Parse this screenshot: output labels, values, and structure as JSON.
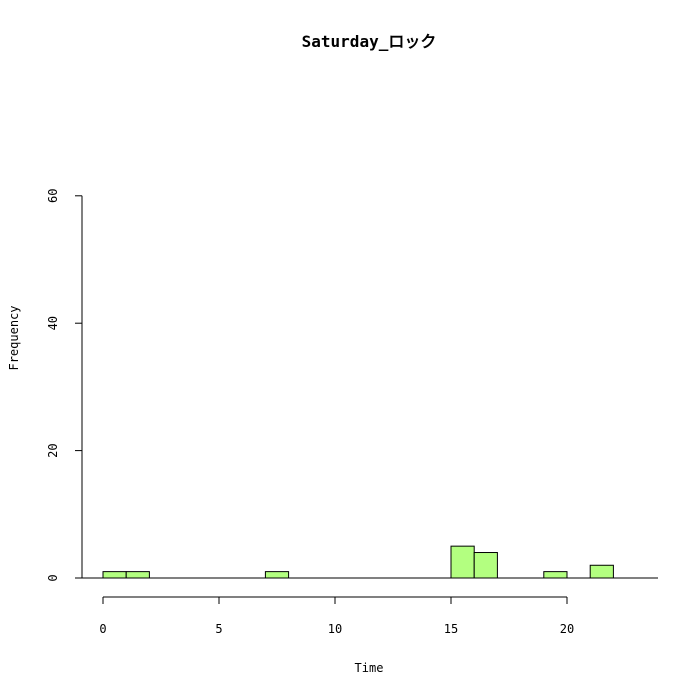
{
  "chart_data": {
    "type": "bar",
    "title": "Saturday_ロック",
    "xlabel": "Time",
    "ylabel": "Frequency",
    "xlim": [
      0,
      24
    ],
    "ylim": [
      0,
      60
    ],
    "x_ticks": [
      0,
      5,
      10,
      15,
      20
    ],
    "y_ticks": [
      0,
      20,
      40,
      60
    ],
    "bin_width": 1,
    "bins": [
      {
        "start": 0,
        "end": 1,
        "count": 1
      },
      {
        "start": 1,
        "end": 2,
        "count": 1
      },
      {
        "start": 2,
        "end": 3,
        "count": 0
      },
      {
        "start": 3,
        "end": 4,
        "count": 0
      },
      {
        "start": 4,
        "end": 5,
        "count": 0
      },
      {
        "start": 5,
        "end": 6,
        "count": 0
      },
      {
        "start": 6,
        "end": 7,
        "count": 0
      },
      {
        "start": 7,
        "end": 8,
        "count": 1
      },
      {
        "start": 8,
        "end": 9,
        "count": 0
      },
      {
        "start": 9,
        "end": 10,
        "count": 0
      },
      {
        "start": 10,
        "end": 11,
        "count": 0
      },
      {
        "start": 11,
        "end": 12,
        "count": 0
      },
      {
        "start": 12,
        "end": 13,
        "count": 0
      },
      {
        "start": 13,
        "end": 14,
        "count": 0
      },
      {
        "start": 14,
        "end": 15,
        "count": 0
      },
      {
        "start": 15,
        "end": 16,
        "count": 5
      },
      {
        "start": 16,
        "end": 17,
        "count": 4
      },
      {
        "start": 17,
        "end": 18,
        "count": 0
      },
      {
        "start": 18,
        "end": 19,
        "count": 0
      },
      {
        "start": 19,
        "end": 20,
        "count": 1
      },
      {
        "start": 20,
        "end": 21,
        "count": 0
      },
      {
        "start": 21,
        "end": 22,
        "count": 2
      },
      {
        "start": 22,
        "end": 23,
        "count": 0
      },
      {
        "start": 23,
        "end": 24,
        "count": 0
      }
    ],
    "bar_color": "#b3ff80",
    "grid": false,
    "legend": "none"
  }
}
